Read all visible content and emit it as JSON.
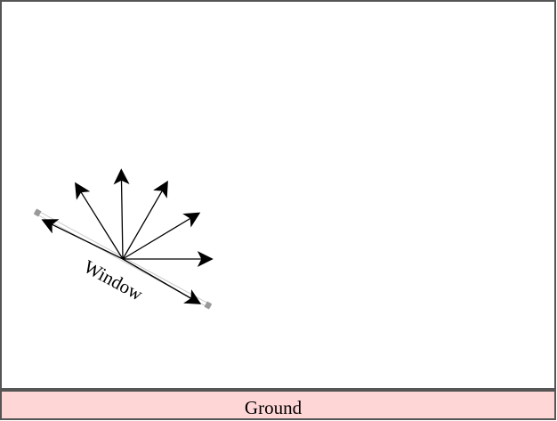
{
  "diagram": {
    "window": {
      "label": "Window"
    },
    "ground": {
      "label": "Ground"
    },
    "rays": [
      {
        "id": "ray-1",
        "angle_deg": 154
      },
      {
        "id": "ray-2",
        "angle_deg": 122
      },
      {
        "id": "ray-3",
        "angle_deg": 91
      },
      {
        "id": "ray-4",
        "angle_deg": 60
      },
      {
        "id": "ray-5",
        "angle_deg": 31
      },
      {
        "id": "ray-6",
        "angle_deg": 0
      },
      {
        "id": "ray-7",
        "angle_deg": -30
      }
    ]
  },
  "colors": {
    "frame_border": "#555555",
    "ground_fill": "#ffd6d6",
    "ground_border": "#555555",
    "window_edge": "#cccccc",
    "window_ends": "#999999",
    "arrow": "#000000",
    "text": "#000000"
  }
}
